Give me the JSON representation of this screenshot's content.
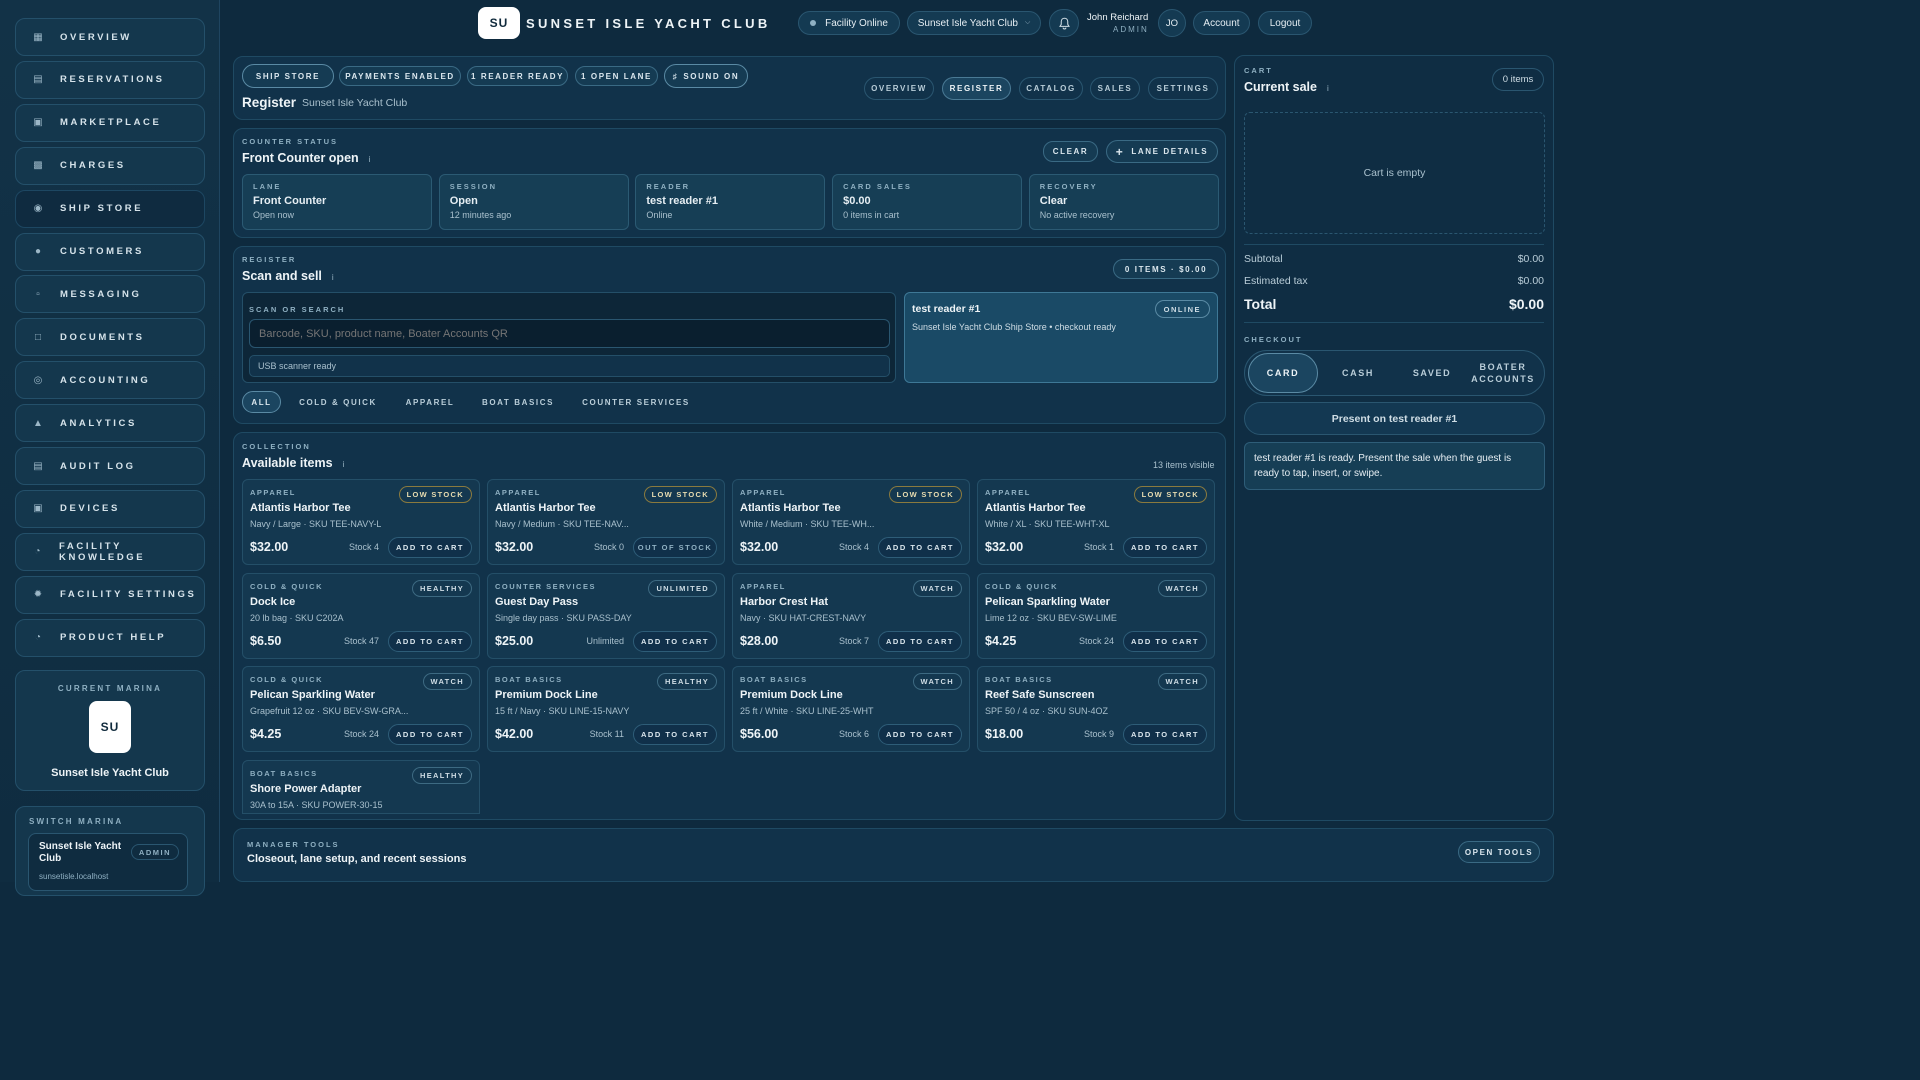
{
  "sidebar": {
    "items": [
      {
        "label": "OVERVIEW",
        "icon": "grid-icon"
      },
      {
        "label": "RESERVATIONS",
        "icon": "calendar-icon"
      },
      {
        "label": "MARKETPLACE",
        "icon": "store-icon"
      },
      {
        "label": "CHARGES",
        "icon": "receipt-icon"
      },
      {
        "label": "SHIP STORE",
        "icon": "bag-icon"
      },
      {
        "label": "CUSTOMERS",
        "icon": "users-icon"
      },
      {
        "label": "MESSAGING",
        "icon": "chat-icon"
      },
      {
        "label": "DOCUMENTS",
        "icon": "document-icon"
      },
      {
        "label": "ACCOUNTING",
        "icon": "coin-icon"
      },
      {
        "label": "ANALYTICS",
        "icon": "chart-icon"
      },
      {
        "label": "AUDIT LOG",
        "icon": "log-icon"
      },
      {
        "label": "DEVICES",
        "icon": "device-icon"
      },
      {
        "label": "FACILITY KNOWLEDGE",
        "icon": "help-icon"
      },
      {
        "label": "FACILITY SETTINGS",
        "icon": "gear-icon"
      },
      {
        "label": "PRODUCT HELP",
        "icon": "help-icon"
      }
    ],
    "current_marina": {
      "caption": "CURRENT MARINA",
      "logo": "SU",
      "name": "Sunset Isle Yacht Club"
    },
    "switch_marina": {
      "caption": "SWITCH MARINA",
      "name": "Sunset Isle Yacht Club",
      "role": "ADMIN",
      "host": "sunsetisle.localhost"
    }
  },
  "header": {
    "logo": "SU",
    "title": "SUNSET ISLE YACHT CLUB",
    "facility_status": "Facility Online",
    "marina_select": "Sunset Isle Yacht Club",
    "user_name": "John Reichard",
    "user_role": "ADMIN",
    "user_initials": "JO",
    "account_label": "Account",
    "logout_label": "Logout"
  },
  "page": {
    "chips": [
      "SHIP STORE",
      "PAYMENTS ENABLED",
      "1 READER READY",
      "1 OPEN LANE",
      "SOUND ON"
    ],
    "title": "Register",
    "subtitle": "Sunset Isle Yacht Club",
    "tabs": [
      "OVERVIEW",
      "REGISTER",
      "CATALOG",
      "SALES",
      "SETTINGS"
    ]
  },
  "counter": {
    "caption": "COUNTER STATUS",
    "title": "Front Counter open",
    "info": "i",
    "clear_label": "CLEAR",
    "lane_details_label": "LANE DETAILS",
    "stats": [
      {
        "label": "LANE",
        "value": "Front Counter",
        "sub": "Open now"
      },
      {
        "label": "SESSION",
        "value": "Open",
        "sub": "12 minutes ago"
      },
      {
        "label": "READER",
        "value": "test reader #1",
        "sub": "Online"
      },
      {
        "label": "CARD SALES",
        "value": "$0.00",
        "sub": "0 items in cart"
      },
      {
        "label": "RECOVERY",
        "value": "Clear",
        "sub": "No active recovery"
      }
    ]
  },
  "register": {
    "caption": "REGISTER",
    "title": "Scan and sell",
    "info": "i",
    "summary": "0 ITEMS · $0.00",
    "search_caption": "SCAN OR SEARCH",
    "search_placeholder": "Barcode, SKU, product name, Boater Accounts QR",
    "scanner_status": "USB scanner ready",
    "reader_name": "test reader #1",
    "reader_badge": "ONLINE",
    "reader_desc": "Sunset Isle Yacht Club Ship Store • checkout ready",
    "filters": [
      "ALL",
      "COLD & QUICK",
      "APPAREL",
      "BOAT BASICS",
      "COUNTER SERVICES"
    ]
  },
  "collection": {
    "caption": "COLLECTION",
    "title": "Available items",
    "info": "i",
    "count": "13 items visible",
    "items": [
      {
        "cat": "APPAREL",
        "name": "Atlantis Harbor Tee",
        "variant": "Navy / Large · SKU TEE-NAVY-L",
        "price": "$32.00",
        "stock": "Stock 4",
        "badge": "LOW STOCK",
        "action": "ADD TO CART"
      },
      {
        "cat": "APPAREL",
        "name": "Atlantis Harbor Tee",
        "variant": "Navy / Medium · SKU TEE-NAV...",
        "price": "$32.00",
        "stock": "Stock 0",
        "badge": "LOW STOCK",
        "action": "OUT OF STOCK"
      },
      {
        "cat": "APPAREL",
        "name": "Atlantis Harbor Tee",
        "variant": "White / Medium · SKU TEE-WH...",
        "price": "$32.00",
        "stock": "Stock 4",
        "badge": "LOW STOCK",
        "action": "ADD TO CART"
      },
      {
        "cat": "APPAREL",
        "name": "Atlantis Harbor Tee",
        "variant": "White / XL · SKU TEE-WHT-XL",
        "price": "$32.00",
        "stock": "Stock 1",
        "badge": "LOW STOCK",
        "action": "ADD TO CART"
      },
      {
        "cat": "COLD & QUICK",
        "name": "Dock Ice",
        "variant": "20 lb bag · SKU C202A",
        "price": "$6.50",
        "stock": "Stock 47",
        "badge": "HEALTHY",
        "action": "ADD TO CART"
      },
      {
        "cat": "COUNTER SERVICES",
        "name": "Guest Day Pass",
        "variant": "Single day pass · SKU PASS-DAY",
        "price": "$25.00",
        "stock": "Unlimited",
        "badge": "UNLIMITED",
        "action": "ADD TO CART"
      },
      {
        "cat": "APPAREL",
        "name": "Harbor Crest Hat",
        "variant": "Navy · SKU HAT-CREST-NAVY",
        "price": "$28.00",
        "stock": "Stock 7",
        "badge": "WATCH",
        "action": "ADD TO CART"
      },
      {
        "cat": "COLD & QUICK",
        "name": "Pelican Sparkling Water",
        "variant": "Lime 12 oz · SKU BEV-SW-LIME",
        "price": "$4.25",
        "stock": "Stock 24",
        "badge": "WATCH",
        "action": "ADD TO CART"
      },
      {
        "cat": "COLD & QUICK",
        "name": "Pelican Sparkling Water",
        "variant": "Grapefruit 12 oz · SKU BEV-SW-GRA...",
        "price": "$4.25",
        "stock": "Stock 24",
        "badge": "WATCH",
        "action": "ADD TO CART"
      },
      {
        "cat": "BOAT BASICS",
        "name": "Premium Dock Line",
        "variant": "15 ft / Navy · SKU LINE-15-NAVY",
        "price": "$42.00",
        "stock": "Stock 11",
        "badge": "HEALTHY",
        "action": "ADD TO CART"
      },
      {
        "cat": "BOAT BASICS",
        "name": "Premium Dock Line",
        "variant": "25 ft / White · SKU LINE-25-WHT",
        "price": "$56.00",
        "stock": "Stock 6",
        "badge": "WATCH",
        "action": "ADD TO CART"
      },
      {
        "cat": "BOAT BASICS",
        "name": "Reef Safe Sunscreen",
        "variant": "SPF 50 / 4 oz · SKU SUN-4OZ",
        "price": "$18.00",
        "stock": "Stock 9",
        "badge": "WATCH",
        "action": "ADD TO CART"
      },
      {
        "cat": "BOAT BASICS",
        "name": "Shore Power Adapter",
        "variant": "30A to 15A · SKU POWER-30-15",
        "price": "",
        "stock": "",
        "badge": "HEALTHY",
        "action": ""
      }
    ]
  },
  "manager": {
    "caption": "MANAGER TOOLS",
    "title": "Closeout, lane setup, and recent sessions",
    "open_label": "OPEN TOOLS"
  },
  "cart": {
    "caption": "CART",
    "title": "Current sale",
    "info": "i",
    "count": "0 items",
    "empty": "Cart is empty",
    "subtotal_label": "Subtotal",
    "subtotal": "$0.00",
    "tax_label": "Estimated tax",
    "tax": "$0.00",
    "total_label": "Total",
    "total": "$0.00",
    "checkout_caption": "CHECKOUT",
    "methods": [
      "CARD",
      "CASH",
      "SAVED",
      "BOATER ACCOUNTS"
    ],
    "present_label": "Present on test reader #1",
    "reader_message": "test reader #1 is ready. Present the sale when the guest is ready to tap, insert, or swipe."
  },
  "colors": {
    "background": "#0e2a3e",
    "panel": "#11324a",
    "accent": "#2a5670",
    "low_stock": "#8a7a3e"
  }
}
